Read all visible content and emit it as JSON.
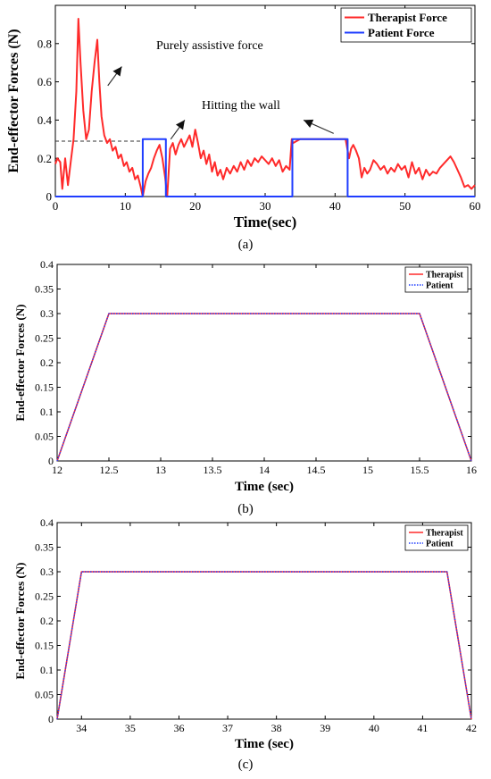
{
  "charts": [
    {
      "caption": "(a)",
      "chart_data": {
        "type": "line",
        "title": "",
        "xlabel": "Time(sec)",
        "ylabel": "End-effector Forces (N)",
        "xlim": [
          0,
          60
        ],
        "ylim": [
          0,
          1
        ],
        "xticks": [
          "0",
          "10",
          "20",
          "30",
          "40",
          "50",
          "60"
        ],
        "yticks": [
          "0",
          "0.2",
          "0.4",
          "0.6",
          "0.8"
        ],
        "legend_position": "top-right",
        "series": [
          {
            "name": "Therapist Force",
            "color": "#ff2a2a",
            "x": [
              0,
              0.3,
              0.7,
              1.0,
              1.4,
              1.8,
              2.2,
              2.6,
              3.0,
              3.3,
              3.6,
              4.0,
              4.4,
              4.8,
              5.2,
              5.6,
              6.0,
              6.3,
              6.6,
              7.0,
              7.4,
              7.8,
              8.2,
              8.6,
              9.0,
              9.4,
              9.8,
              10.2,
              10.6,
              11.0,
              11.4,
              11.8,
              12.2,
              12.5,
              12.9,
              13.3,
              13.7,
              14.1,
              14.5,
              14.9,
              15.3,
              15.7,
              16.0,
              16.4,
              16.8,
              17.2,
              17.6,
              18.0,
              18.4,
              18.8,
              19.2,
              19.6,
              20.0,
              20.4,
              20.8,
              21.2,
              21.6,
              22.0,
              22.4,
              22.8,
              23.2,
              23.6,
              24.0,
              24.5,
              25.0,
              25.5,
              26.0,
              26.5,
              27.0,
              27.5,
              28.0,
              28.5,
              29.0,
              29.5,
              30.0,
              30.5,
              31.0,
              31.5,
              32.0,
              32.5,
              33.0,
              33.5,
              33.8,
              34.0,
              34.5,
              35.0,
              35.5,
              36.0,
              36.5,
              37.0,
              37.5,
              38.0,
              38.5,
              39.0,
              39.5,
              40.0,
              40.5,
              41.0,
              41.5,
              42.0,
              42.3,
              42.6,
              43.0,
              43.4,
              43.8,
              44.2,
              44.6,
              45.0,
              45.5,
              46.0,
              46.5,
              47.0,
              47.5,
              48.0,
              48.5,
              49.0,
              49.5,
              50.0,
              50.5,
              51.0,
              51.5,
              52.0,
              52.5,
              53.0,
              53.5,
              54.0,
              54.5,
              55.0,
              55.5,
              56.0,
              56.5,
              57.0,
              57.5,
              58.0,
              58.5,
              59.0,
              59.5,
              60.0
            ],
            "y": [
              0.17,
              0.2,
              0.18,
              0.04,
              0.2,
              0.06,
              0.18,
              0.3,
              0.55,
              0.93,
              0.7,
              0.45,
              0.3,
              0.35,
              0.55,
              0.7,
              0.82,
              0.6,
              0.42,
              0.32,
              0.28,
              0.3,
              0.24,
              0.26,
              0.2,
              0.22,
              0.16,
              0.18,
              0.13,
              0.15,
              0.09,
              0.11,
              0.05,
              0.0,
              0.08,
              0.12,
              0.15,
              0.2,
              0.24,
              0.27,
              0.2,
              0.1,
              0.0,
              0.25,
              0.28,
              0.22,
              0.27,
              0.3,
              0.26,
              0.29,
              0.32,
              0.26,
              0.35,
              0.28,
              0.2,
              0.24,
              0.17,
              0.22,
              0.13,
              0.18,
              0.11,
              0.14,
              0.09,
              0.15,
              0.12,
              0.16,
              0.13,
              0.18,
              0.14,
              0.19,
              0.16,
              0.2,
              0.18,
              0.21,
              0.19,
              0.17,
              0.2,
              0.16,
              0.19,
              0.13,
              0.16,
              0.14,
              0.3,
              0.28,
              0.29,
              0.3,
              0.3,
              0.3,
              0.3,
              0.3,
              0.3,
              0.3,
              0.3,
              0.3,
              0.3,
              0.3,
              0.3,
              0.3,
              0.3,
              0.2,
              0.25,
              0.27,
              0.24,
              0.2,
              0.1,
              0.15,
              0.12,
              0.14,
              0.19,
              0.17,
              0.14,
              0.16,
              0.12,
              0.15,
              0.13,
              0.17,
              0.14,
              0.16,
              0.1,
              0.18,
              0.12,
              0.15,
              0.09,
              0.14,
              0.11,
              0.13,
              0.12,
              0.15,
              0.17,
              0.19,
              0.21,
              0.18,
              0.14,
              0.1,
              0.05,
              0.06,
              0.04,
              0.06
            ]
          },
          {
            "name": "Patient Force",
            "color": "#1f3dff",
            "x": [
              0,
              12.5,
              12.5,
              15.8,
              15.8,
              33.9,
              33.9,
              41.8,
              41.8,
              60
            ],
            "y": [
              0,
              0,
              0.3,
              0.3,
              0,
              0,
              0.3,
              0.3,
              0,
              0
            ]
          }
        ],
        "reference_line": {
          "y": 0.29,
          "x_from": 0,
          "x_to": 12.6
        },
        "annotations": [
          {
            "text": "Purely assistive force",
            "arrow_to": [
              9.5,
              0.68
            ]
          },
          {
            "text": "Hitting the wall",
            "arrow_to": [
              18.5,
              0.4
            ]
          },
          {
            "text": "",
            "arrow_to": [
              35.5,
              0.4
            ]
          }
        ]
      }
    },
    {
      "caption": "(b)",
      "chart_data": {
        "type": "line",
        "title": "",
        "xlabel": "Time (sec)",
        "ylabel": "End-effector Forces (N)",
        "xlim": [
          12,
          16
        ],
        "ylim": [
          0,
          0.4
        ],
        "xticks": [
          "12",
          "12.5",
          "13",
          "13.5",
          "14",
          "14.5",
          "15",
          "15.5",
          "16"
        ],
        "yticks": [
          "0",
          "0.05",
          "0.1",
          "0.15",
          "0.2",
          "0.25",
          "0.3",
          "0.35",
          "0.4"
        ],
        "legend_position": "top-right",
        "series": [
          {
            "name": "Therapist",
            "color": "#ff2a2a",
            "style": "solid",
            "x": [
              12,
              12.5,
              15.5,
              16
            ],
            "y": [
              0,
              0.3,
              0.3,
              0
            ]
          },
          {
            "name": "Patient",
            "color": "#1f3dff",
            "style": "dotted",
            "x": [
              12,
              12.5,
              15.5,
              16
            ],
            "y": [
              0,
              0.3,
              0.3,
              0
            ]
          }
        ]
      }
    },
    {
      "caption": "(c)",
      "chart_data": {
        "type": "line",
        "title": "",
        "xlabel": "Time (sec)",
        "ylabel": "End-effector Forces (N)",
        "xlim": [
          33.5,
          42
        ],
        "ylim": [
          0,
          0.4
        ],
        "xticks": [
          "34",
          "35",
          "36",
          "37",
          "38",
          "39",
          "40",
          "41",
          "42"
        ],
        "yticks": [
          "0",
          "0.05",
          "0.1",
          "0.15",
          "0.2",
          "0.25",
          "0.3",
          "0.35",
          "0.4"
        ],
        "legend_position": "top-right",
        "series": [
          {
            "name": "Therapist",
            "color": "#ff2a2a",
            "style": "solid",
            "x": [
              33.5,
              34,
              41.5,
              42
            ],
            "y": [
              0,
              0.3,
              0.3,
              0
            ]
          },
          {
            "name": "Patient",
            "color": "#1f3dff",
            "style": "dotted",
            "x": [
              33.5,
              34,
              41.5,
              42
            ],
            "y": [
              0,
              0.3,
              0.3,
              0
            ]
          }
        ]
      }
    }
  ]
}
